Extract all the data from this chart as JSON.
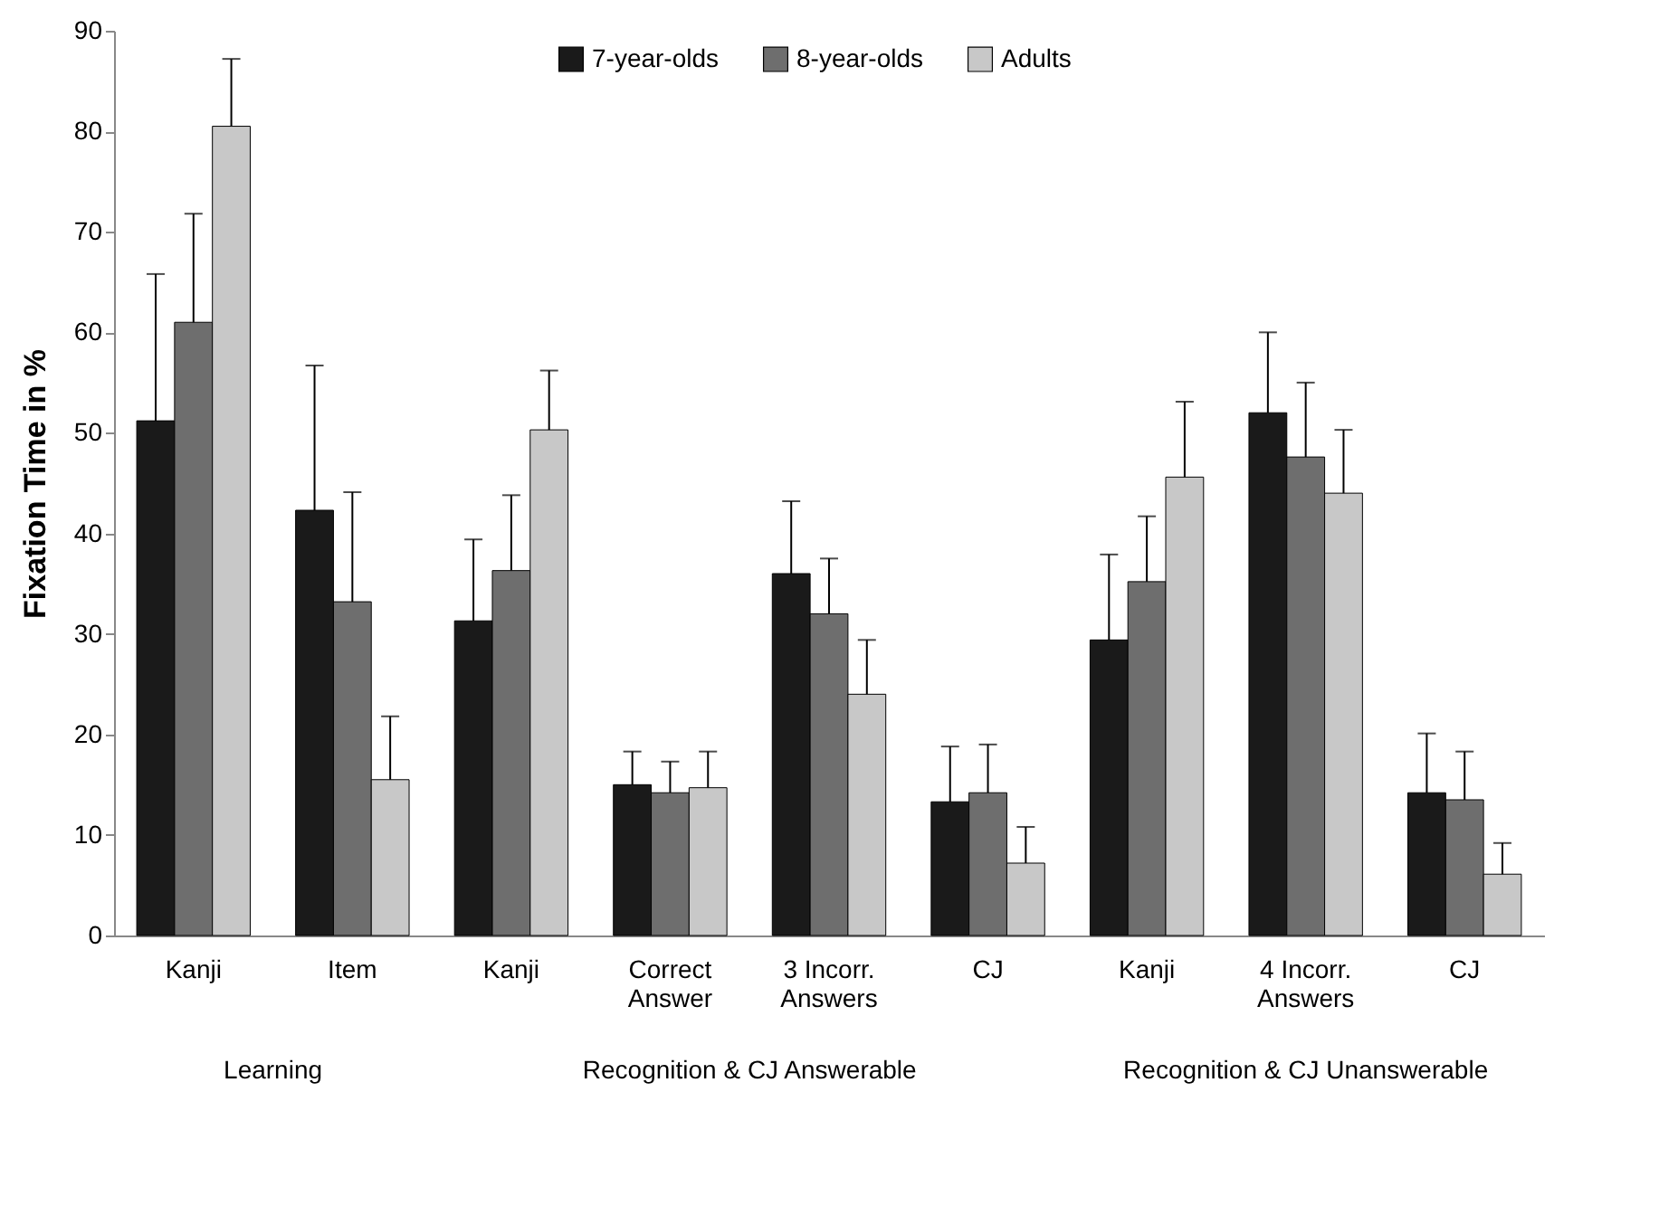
{
  "chart_data": {
    "type": "bar",
    "ylabel": "Fixation Time in %",
    "categories": [
      "Kanji",
      "Item",
      "Kanji",
      "Correct Answer",
      "3 Incorr. Answers",
      "CJ",
      "Kanji",
      "4 Incorr. Answers",
      "CJ"
    ],
    "series": [
      {
        "name": "7-year-olds",
        "color": "#1a1a1a",
        "values": [
          51.2,
          42.3,
          31.3,
          15,
          36,
          13.3,
          29.4,
          52,
          14.2
        ],
        "errors": [
          [
            51.2,
            65.8
          ],
          [
            42.3,
            56.7
          ],
          [
            31.3,
            39.4
          ],
          [
            15,
            18.3
          ],
          [
            36,
            43.2
          ],
          [
            13.3,
            18.8
          ],
          [
            29.4,
            37.9
          ],
          [
            52,
            60
          ],
          [
            14.2,
            20.1
          ]
        ]
      },
      {
        "name": "8-year-olds",
        "color": "#6e6e6e",
        "values": [
          61,
          33.2,
          36.3,
          14.2,
          32,
          14.2,
          35.2,
          47.6,
          13.5
        ],
        "errors": [
          [
            61,
            71.8
          ],
          [
            33.2,
            44.1
          ],
          [
            36.3,
            43.8
          ],
          [
            14.2,
            17.3
          ],
          [
            32,
            37.5
          ],
          [
            14.2,
            19
          ],
          [
            35.2,
            41.7
          ],
          [
            47.6,
            55
          ],
          [
            13.5,
            18.3
          ]
        ]
      },
      {
        "name": "Adults",
        "color": "#c8c8c8",
        "values": [
          80.5,
          15.5,
          50.3,
          14.7,
          24,
          7.2,
          45.6,
          44,
          6.1
        ],
        "errors": [
          [
            80.5,
            87.2
          ],
          [
            15.5,
            21.8
          ],
          [
            50.3,
            56.2
          ],
          [
            14.7,
            18.3
          ],
          [
            24,
            29.4
          ],
          [
            7.2,
            10.8
          ],
          [
            45.6,
            53.1
          ],
          [
            44,
            50.3
          ],
          [
            6.1,
            9.2
          ]
        ]
      }
    ],
    "annotations": [
      "Learning",
      "Recognition & CJ Answerable",
      "Recognition & CJ Unanswerable"
    ],
    "ylim": [
      0,
      90
    ],
    "yticks": [
      0,
      10,
      20,
      30,
      40,
      50,
      60,
      70,
      80,
      90
    ],
    "legend": "top",
    "grid": false
  }
}
